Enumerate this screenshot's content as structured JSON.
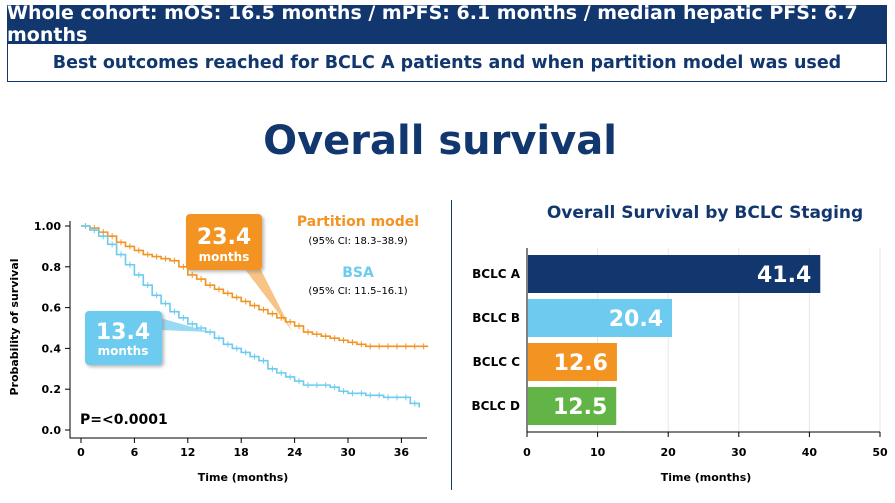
{
  "header": {
    "line1": "Whole cohort: mOS: 16.5 months / mPFS: 6.1 months / median hepatic PFS: 6.7 months",
    "line2": "Best outcomes reached for BCLC A patients and when partition model was used"
  },
  "page_title": "Overall survival",
  "colors": {
    "navy": "#12376e",
    "orange": "#f39322",
    "lightblue": "#6ccbef",
    "green": "#62b446"
  },
  "chart_data": [
    {
      "type": "line",
      "title": "",
      "xlabel": "Time (months)",
      "ylabel": "Probability of survival",
      "xlim": [
        0,
        39
      ],
      "ylim": [
        0,
        1.0
      ],
      "x_ticks": [
        "0",
        "6",
        "12",
        "18",
        "24",
        "30",
        "36"
      ],
      "y_ticks": [
        "0.0",
        "0.2",
        "0.4",
        "0.6",
        "0.8",
        "1.00"
      ],
      "p_value": "P=<0.0001",
      "series": [
        {
          "name": "Partition model",
          "ci": "(95% CI: 18.3–38.9)",
          "median_value": "23.4",
          "median_unit": "months",
          "x": [
            0,
            1,
            2,
            3,
            4,
            5,
            6,
            7,
            8,
            9,
            10,
            11,
            12,
            13,
            14,
            15,
            16,
            17,
            18,
            19,
            20,
            21,
            22,
            23,
            24,
            25,
            26,
            27,
            28,
            29,
            30,
            31,
            32,
            33,
            34,
            35,
            36,
            37,
            38,
            39
          ],
          "y": [
            1.0,
            0.99,
            0.97,
            0.95,
            0.92,
            0.9,
            0.88,
            0.86,
            0.85,
            0.84,
            0.83,
            0.8,
            0.76,
            0.74,
            0.71,
            0.69,
            0.67,
            0.65,
            0.63,
            0.61,
            0.59,
            0.57,
            0.55,
            0.53,
            0.51,
            0.48,
            0.47,
            0.46,
            0.45,
            0.44,
            0.43,
            0.42,
            0.41,
            0.41,
            0.41,
            0.41,
            0.41,
            0.41,
            0.41,
            0.41
          ]
        },
        {
          "name": "BSA",
          "ci": "(95% CI: 11.5–16.1)",
          "median_value": "13.4",
          "median_unit": "months",
          "x": [
            0,
            1,
            2,
            3,
            4,
            5,
            6,
            7,
            8,
            9,
            10,
            11,
            12,
            13,
            14,
            15,
            16,
            17,
            18,
            19,
            20,
            21,
            22,
            23,
            24,
            25,
            26,
            27,
            28,
            29,
            30,
            31,
            32,
            33,
            34,
            35,
            36,
            37,
            38
          ],
          "y": [
            1.0,
            0.98,
            0.95,
            0.91,
            0.86,
            0.81,
            0.76,
            0.71,
            0.66,
            0.62,
            0.58,
            0.55,
            0.52,
            0.5,
            0.48,
            0.45,
            0.42,
            0.4,
            0.38,
            0.36,
            0.34,
            0.3,
            0.28,
            0.26,
            0.24,
            0.22,
            0.22,
            0.22,
            0.21,
            0.19,
            0.18,
            0.18,
            0.17,
            0.17,
            0.16,
            0.16,
            0.16,
            0.13,
            0.11
          ]
        }
      ]
    },
    {
      "type": "bar",
      "orientation": "horizontal",
      "title": "Overall Survival by BCLC Staging",
      "xlabel": "Time (months)",
      "ylabel": "",
      "xlim": [
        0,
        50
      ],
      "x_ticks": [
        "0",
        "10",
        "20",
        "30",
        "40",
        "50"
      ],
      "grid": true,
      "categories": [
        "BCLC A",
        "BCLC B",
        "BCLC C",
        "BCLC D"
      ],
      "values": [
        41.4,
        20.4,
        12.6,
        12.5
      ],
      "value_labels": [
        "41.4",
        "20.4",
        "12.6",
        "12.5"
      ]
    }
  ]
}
